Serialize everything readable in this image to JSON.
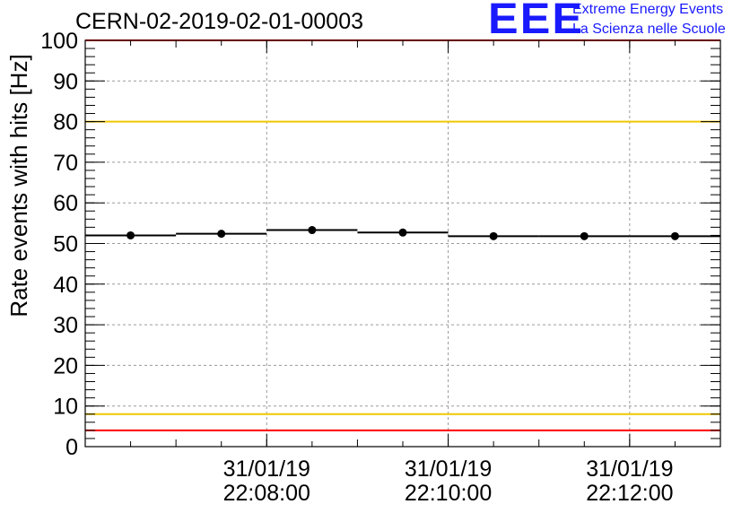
{
  "header": {
    "run_id": "CERN-02-2019-02-01-00003",
    "logo_text": "EEE",
    "logo_line1": "Extreme Energy Events",
    "logo_line2": "La Scienza nelle Scuole"
  },
  "colors": {
    "logo": "#1a1aff",
    "data": "#000000",
    "red_line": "#ff0000",
    "yellow_line": "#f0c800",
    "grid": "#9a9a9a"
  },
  "chart_data": {
    "type": "scatter",
    "title": "CERN-02-2019-02-01-00003",
    "ylabel": "Rate events with hits [Hz]",
    "xlabel": "",
    "ylim": [
      0,
      100
    ],
    "yticks": [
      0,
      10,
      20,
      30,
      40,
      50,
      60,
      70,
      80,
      90,
      100
    ],
    "x_axis": "time",
    "xlim": [
      "31/01/19 22:06:00",
      "31/01/19 22:13:00"
    ],
    "xticks": [
      {
        "time": "31/01/19 22:08:00",
        "date": "31/01/19",
        "clock": "22:08:00"
      },
      {
        "time": "31/01/19 22:10:00",
        "date": "31/01/19",
        "clock": "22:10:00"
      },
      {
        "time": "31/01/19 22:12:00",
        "date": "31/01/19",
        "clock": "22:12:00"
      }
    ],
    "grid": true,
    "reference_lines": [
      {
        "y": 100,
        "color": "red"
      },
      {
        "y": 80,
        "color": "yellow"
      },
      {
        "y": 8,
        "color": "yellow"
      },
      {
        "y": 4,
        "color": "red"
      }
    ],
    "series": [
      {
        "points": [
          {
            "x_start": "31/01/19 22:06:00",
            "x_end": "31/01/19 22:07:00",
            "y": 52.0
          },
          {
            "x_start": "31/01/19 22:07:00",
            "x_end": "31/01/19 22:08:00",
            "y": 52.4
          },
          {
            "x_start": "31/01/19 22:08:00",
            "x_end": "31/01/19 22:09:00",
            "y": 53.3
          },
          {
            "x_start": "31/01/19 22:09:00",
            "x_end": "31/01/19 22:10:00",
            "y": 52.7
          },
          {
            "x_start": "31/01/19 22:10:00",
            "x_end": "31/01/19 22:11:00",
            "y": 51.8
          },
          {
            "x_start": "31/01/19 22:11:00",
            "x_end": "31/01/19 22:12:00",
            "y": 51.8
          },
          {
            "x_start": "31/01/19 22:12:00",
            "x_end": "31/01/19 22:13:00",
            "y": 51.8
          }
        ]
      }
    ]
  }
}
